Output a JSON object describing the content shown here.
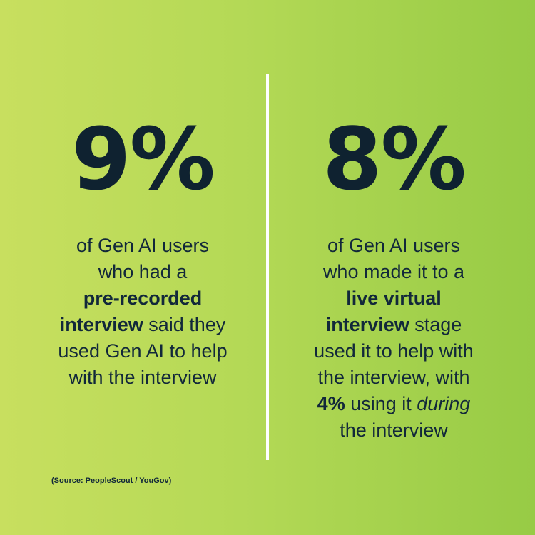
{
  "left": {
    "stat": "9%",
    "line1": "of Gen AI users",
    "line2": "who had a",
    "line3_bold": "pre-recorded",
    "line4_bold": "interview",
    "line4_rest": " said they",
    "line5": "used Gen AI to help",
    "line6": "with the interview"
  },
  "right": {
    "stat": "8%",
    "line1": "of Gen AI users",
    "line2": "who made it to a",
    "line3_bold": "live virtual",
    "line4_bold": "interview",
    "line4_rest": " stage",
    "line5": "used it to help with",
    "line6": "the interview, with",
    "line7_bold": "4%",
    "line7_mid": " using it ",
    "line7_italic": "during",
    "line8": "the interview"
  },
  "source": "(Source: PeopleScout / YouGov)",
  "colors": {
    "background_start": "#c8df5f",
    "background_end": "#97cb45",
    "text": "#0f2230",
    "divider": "#ffffff"
  }
}
